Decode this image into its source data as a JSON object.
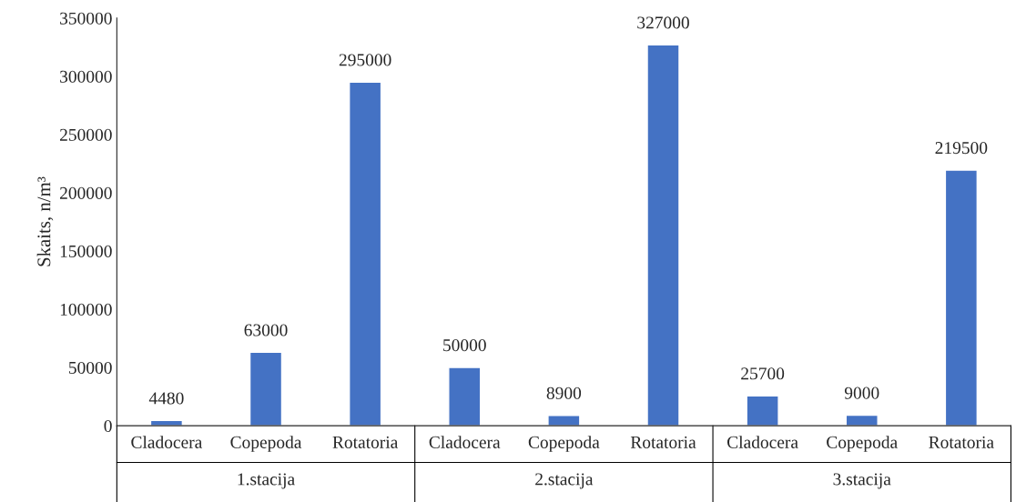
{
  "chart_data": {
    "type": "bar",
    "ylabel": "Skaits, n/m³",
    "categories": [
      "Cladocera",
      "Copepoda",
      "Rotatoria",
      "Cladocera",
      "Copepoda",
      "Rotatoria",
      "Cladocera",
      "Copepoda",
      "Rotatoria"
    ],
    "values": [
      4480,
      63000,
      295000,
      50000,
      8900,
      327000,
      25700,
      9000,
      219500
    ],
    "color": "#4472c4",
    "ylim": [
      0,
      350000
    ],
    "yticks": [
      0,
      50000,
      100000,
      150000,
      200000,
      250000,
      300000,
      350000
    ],
    "data_labels": true,
    "grid": false,
    "annotations": [
      "1.stacija",
      "2.stacija",
      "3.stacija"
    ]
  }
}
